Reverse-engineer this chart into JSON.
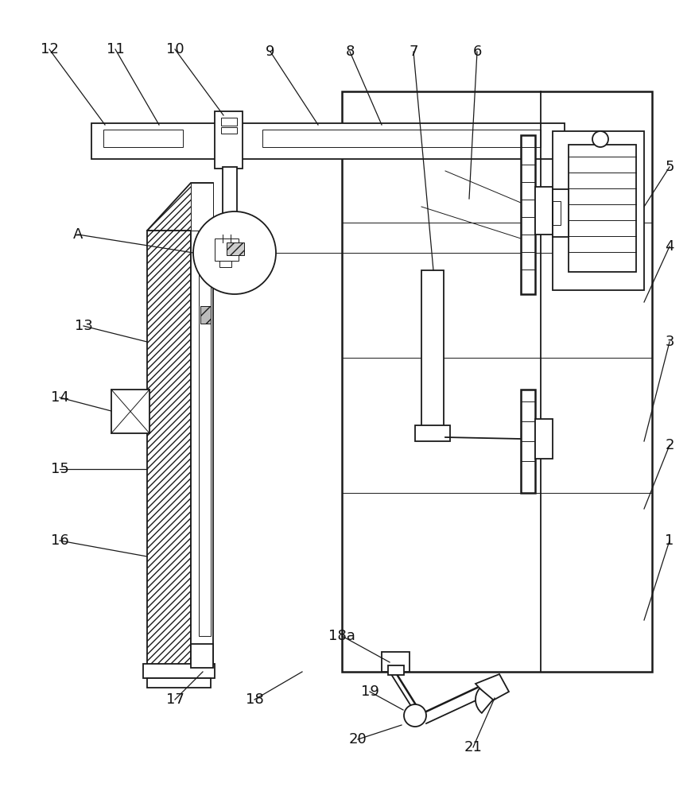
{
  "bg_color": "#ffffff",
  "lc": "#1a1a1a",
  "figsize": [
    8.69,
    10.0
  ],
  "dpi": 100,
  "lw_main": 1.3,
  "lw_thin": 0.7,
  "lw_thick": 1.8,
  "label_fontsize": 13,
  "label_color": "#111111"
}
